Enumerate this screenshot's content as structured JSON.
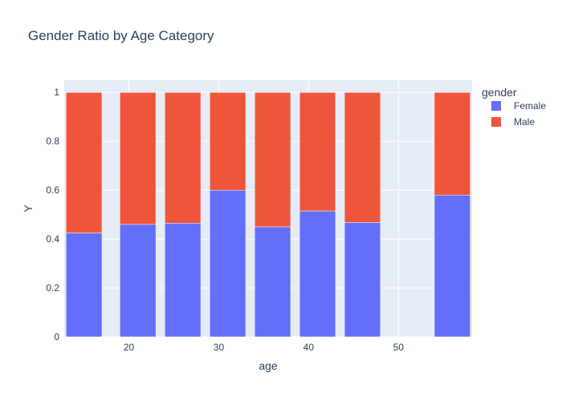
{
  "chart_data": {
    "type": "bar",
    "barmode": "stack",
    "title": "Gender Ratio by Age Category",
    "xlabel": "age",
    "ylabel": "Y",
    "x": [
      15,
      21,
      26,
      31,
      36,
      41,
      46,
      51,
      56
    ],
    "xlim": [
      12.8,
      58.2
    ],
    "ylim": [
      0,
      1.05
    ],
    "xticks": [
      20,
      30,
      40,
      50
    ],
    "yticks": [
      0,
      0.2,
      0.4,
      0.6,
      0.8,
      1
    ],
    "ytick_labels": [
      "0",
      "0.2",
      "0.4",
      "0.6",
      "0.8",
      "1"
    ],
    "legend_title": "gender",
    "legend_position": "top-right",
    "grid": true,
    "series": [
      {
        "name": "Female",
        "color": "#636efa",
        "values": [
          0.425,
          0.46,
          0.465,
          0.6,
          0.45,
          0.515,
          0.468,
          0,
          0.58
        ]
      },
      {
        "name": "Male",
        "color": "#ef553b",
        "values": [
          0.575,
          0.54,
          0.535,
          0.4,
          0.55,
          0.485,
          0.532,
          0,
          0.42
        ]
      }
    ],
    "colors": {
      "plot_bg": "#e5ecf6",
      "grid": "#ffffff",
      "text": "#2a3f5f"
    }
  }
}
